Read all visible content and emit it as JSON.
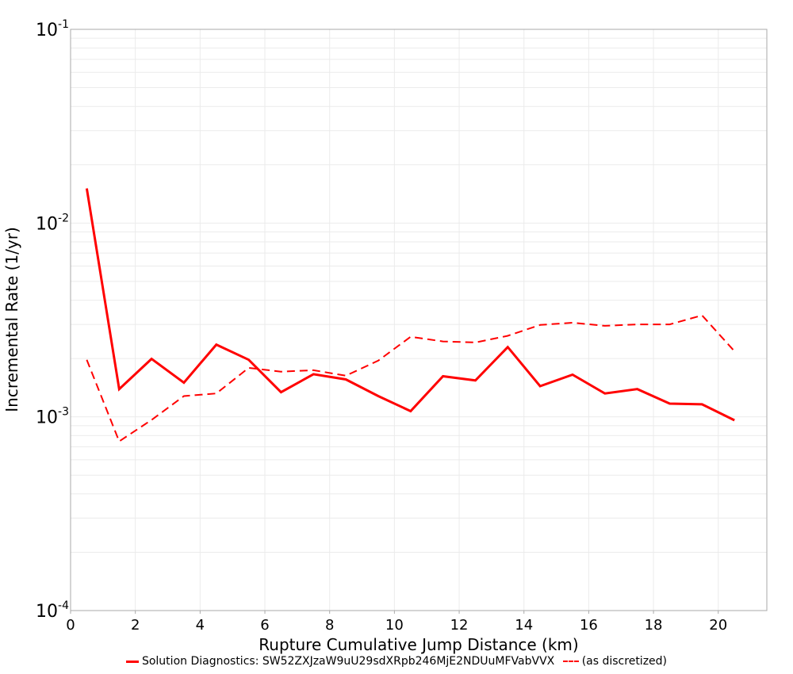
{
  "chart_data": {
    "type": "line",
    "title": "",
    "xlabel": "Rupture Cumulative Jump Distance (km)",
    "ylabel": "Incremental Rate (1/yr)",
    "xlim": [
      0,
      21.5
    ],
    "ylim": [
      0.0001,
      0.1
    ],
    "yscale": "log",
    "grid": true,
    "legend_position": "bottom",
    "x_ticks": [
      0,
      2,
      4,
      6,
      8,
      10,
      12,
      14,
      16,
      18,
      20
    ],
    "y_ticks": [
      "10^-4",
      "10^-3",
      "10^-2",
      "10^-1"
    ],
    "x": [
      0.5,
      1.5,
      2.5,
      3.5,
      4.5,
      5.5,
      6.5,
      7.5,
      8.5,
      9.5,
      10.5,
      11.5,
      12.5,
      13.5,
      14.5,
      15.5,
      16.5,
      17.5,
      18.5,
      19.5,
      20.5
    ],
    "series": [
      {
        "name": "Solution Diagnostics: SW52ZXJzaW9uU29sdXRpb246MjE2NDUuMFVabVVX",
        "style": "solid",
        "color": "#ff0000",
        "values": [
          0.0151,
          0.00139,
          0.00199,
          0.0015,
          0.00236,
          0.00197,
          0.00134,
          0.00166,
          0.00156,
          0.00128,
          0.00107,
          0.00162,
          0.00154,
          0.00229,
          0.00144,
          0.00165,
          0.00132,
          0.00139,
          0.00117,
          0.00116,
          0.00096
        ]
      },
      {
        "name": "(as discretized)",
        "style": "dashed",
        "color": "#ff0000",
        "values": [
          0.00197,
          0.000747,
          0.000964,
          0.00128,
          0.00132,
          0.00179,
          0.00171,
          0.00174,
          0.00163,
          0.00195,
          0.00259,
          0.00245,
          0.00242,
          0.00262,
          0.00298,
          0.00306,
          0.00295,
          0.003,
          0.003,
          0.00334,
          0.00218
        ]
      }
    ]
  },
  "axes": {
    "x_title": "Rupture Cumulative Jump Distance (km)",
    "y_title": "Incremental Rate (1/yr)",
    "x_tick_labels": [
      "0",
      "2",
      "4",
      "6",
      "8",
      "10",
      "12",
      "14",
      "16",
      "18",
      "20"
    ],
    "y_tick_exponents": [
      "-4",
      "-3",
      "-2",
      "-1"
    ]
  },
  "legend": {
    "items": [
      {
        "label": "Solution Diagnostics: SW52ZXJzaW9uU29sdXRpb246MjE2NDUuMFVabVVX",
        "style": "solid"
      },
      {
        "label": "(as discretized)",
        "style": "dashed"
      }
    ]
  }
}
